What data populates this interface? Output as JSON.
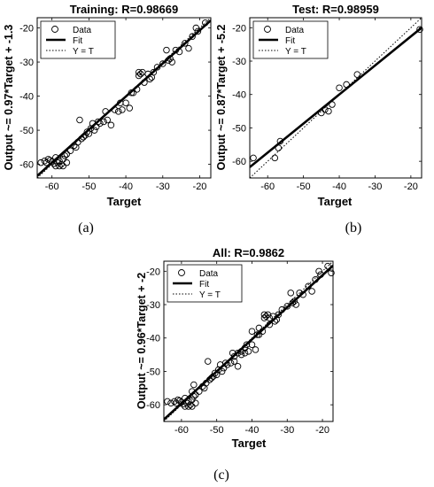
{
  "chart_data": [
    {
      "type": "scatter",
      "panel_label": "(a)",
      "title": "Training: R=0.98669",
      "xlabel": "Target",
      "ylabel": "Output ~= 0.97*Target + -1.3",
      "xlim": [
        -64,
        -17
      ],
      "ylim": [
        -64,
        -17
      ],
      "xticks": [
        -60,
        -50,
        -40,
        -30,
        -20
      ],
      "yticks": [
        -60,
        -50,
        -40,
        -30,
        -20
      ],
      "grid": false,
      "legend_position": "top-left",
      "legend": [
        "Data",
        "Fit",
        "Y = T"
      ],
      "fit": {
        "slope": 0.97,
        "intercept": -1.3
      },
      "series": [
        {
          "name": "Data",
          "points": [
            [
              -63,
              -59.5
            ],
            [
              -62,
              -59
            ],
            [
              -61.5,
              -59.5
            ],
            [
              -61,
              -58.5
            ],
            [
              -60.5,
              -58.8
            ],
            [
              -60,
              -59.2
            ],
            [
              -59.5,
              -59.8
            ],
            [
              -59,
              -58
            ],
            [
              -59,
              -60.5
            ],
            [
              -58.5,
              -59.5
            ],
            [
              -58,
              -60.5
            ],
            [
              -58,
              -59
            ],
            [
              -57.5,
              -60
            ],
            [
              -57,
              -60.5
            ],
            [
              -57,
              -58.5
            ],
            [
              -56.5,
              -57.5
            ],
            [
              -56,
              -59.5
            ],
            [
              -56,
              -57
            ],
            [
              -55,
              -56
            ],
            [
              -54,
              -54.5
            ],
            [
              -53.5,
              -55
            ],
            [
              -53,
              -53.5
            ],
            [
              -52.5,
              -47
            ],
            [
              -52,
              -52.5
            ],
            [
              -51.5,
              -52
            ],
            [
              -51,
              -51.5
            ],
            [
              -50.5,
              -50.5
            ],
            [
              -50,
              -51
            ],
            [
              -49.5,
              -49.5
            ],
            [
              -49,
              -48
            ],
            [
              -48.5,
              -50
            ],
            [
              -48,
              -49
            ],
            [
              -47.5,
              -47.5
            ],
            [
              -47,
              -48
            ],
            [
              -46,
              -47.5
            ],
            [
              -45.5,
              -44.5
            ],
            [
              -45,
              -47
            ],
            [
              -44,
              -48.5
            ],
            [
              -43,
              -44
            ],
            [
              -42,
              -44.5
            ],
            [
              -41.5,
              -42
            ],
            [
              -41,
              -44
            ],
            [
              -40,
              -42
            ],
            [
              -39,
              -43.5
            ],
            [
              -38.5,
              -39
            ],
            [
              -38,
              -39
            ],
            [
              -37,
              -38
            ],
            [
              -36.5,
              -33
            ],
            [
              -36.5,
              -34
            ],
            [
              -36,
              -33.5
            ],
            [
              -35.5,
              -33
            ],
            [
              -35,
              -36
            ],
            [
              -34,
              -33.5
            ],
            [
              -33.5,
              -35
            ],
            [
              -33,
              -34.5
            ],
            [
              -32.5,
              -33
            ],
            [
              -31.5,
              -31.5
            ],
            [
              -30,
              -30.5
            ],
            [
              -29,
              -26.5
            ],
            [
              -28.5,
              -29.5
            ],
            [
              -28,
              -29
            ],
            [
              -27.5,
              -30
            ],
            [
              -26.5,
              -26.5
            ],
            [
              -25.5,
              -27
            ],
            [
              -24,
              -24.5
            ],
            [
              -23,
              -26
            ],
            [
              -22,
              -22.5
            ],
            [
              -21,
              -20
            ],
            [
              -20.5,
              -21
            ],
            [
              -18.5,
              -18.5
            ]
          ]
        }
      ]
    },
    {
      "type": "scatter",
      "panel_label": "(b)",
      "title": "Test: R=0.98959",
      "xlabel": "Target",
      "ylabel": "Output ~= 0.87*Target + -5.2",
      "xlim": [
        -65,
        -17
      ],
      "ylim": [
        -65,
        -17
      ],
      "xticks": [
        -60,
        -50,
        -40,
        -30,
        -20
      ],
      "yticks": [
        -60,
        -50,
        -40,
        -30,
        -20
      ],
      "grid": false,
      "legend_position": "top-left",
      "legend": [
        "Data",
        "Fit",
        "Y = T"
      ],
      "fit": {
        "slope": 0.87,
        "intercept": -5.2
      },
      "series": [
        {
          "name": "Data",
          "points": [
            [
              -64,
              -59
            ],
            [
              -58,
              -59
            ],
            [
              -57,
              -56
            ],
            [
              -56.5,
              -54
            ],
            [
              -45,
              -45.5
            ],
            [
              -44,
              -44.5
            ],
            [
              -43,
              -45
            ],
            [
              -42,
              -43
            ],
            [
              -40,
              -38
            ],
            [
              -38,
              -37
            ],
            [
              -35,
              -34
            ],
            [
              -17.5,
              -20.5
            ]
          ]
        }
      ]
    },
    {
      "type": "scatter",
      "panel_label": "(c)",
      "title": "All: R=0.9862",
      "xlabel": "Target",
      "ylabel": "Output ~= 0.96*Target + -2",
      "xlim": [
        -65,
        -17
      ],
      "ylim": [
        -65,
        -17
      ],
      "xticks": [
        -60,
        -50,
        -40,
        -30,
        -20
      ],
      "yticks": [
        -60,
        -50,
        -40,
        -30,
        -20
      ],
      "grid": false,
      "legend_position": "top-left",
      "legend": [
        "Data",
        "Fit",
        "Y = T"
      ],
      "fit": {
        "slope": 0.96,
        "intercept": -2
      },
      "series": [
        {
          "name": "Data",
          "points": [
            [
              -64,
              -59
            ],
            [
              -63,
              -59.5
            ],
            [
              -62,
              -59
            ],
            [
              -61.5,
              -59.5
            ],
            [
              -61,
              -58.5
            ],
            [
              -60.5,
              -58.8
            ],
            [
              -60,
              -59.2
            ],
            [
              -59.5,
              -59.8
            ],
            [
              -59,
              -58
            ],
            [
              -59,
              -60.5
            ],
            [
              -58.5,
              -59.5
            ],
            [
              -58,
              -60.5
            ],
            [
              -58,
              -59
            ],
            [
              -57.5,
              -60
            ],
            [
              -57,
              -60.5
            ],
            [
              -57,
              -58.5
            ],
            [
              -57,
              -56
            ],
            [
              -56.5,
              -54
            ],
            [
              -56.5,
              -57.5
            ],
            [
              -56,
              -59.5
            ],
            [
              -56,
              -57
            ],
            [
              -55,
              -56
            ],
            [
              -54,
              -54.5
            ],
            [
              -53.5,
              -55
            ],
            [
              -53,
              -53.5
            ],
            [
              -52.5,
              -47
            ],
            [
              -52,
              -52.5
            ],
            [
              -51.5,
              -52
            ],
            [
              -51,
              -51.5
            ],
            [
              -50.5,
              -50.5
            ],
            [
              -50,
              -51
            ],
            [
              -49.5,
              -49.5
            ],
            [
              -49,
              -48
            ],
            [
              -48.5,
              -50
            ],
            [
              -48,
              -49
            ],
            [
              -47.5,
              -47.5
            ],
            [
              -47,
              -48
            ],
            [
              -46,
              -47.5
            ],
            [
              -45.5,
              -44.5
            ],
            [
              -45,
              -45.5
            ],
            [
              -45,
              -47
            ],
            [
              -44,
              -48.5
            ],
            [
              -44,
              -44.5
            ],
            [
              -43,
              -45
            ],
            [
              -43,
              -44
            ],
            [
              -42,
              -43
            ],
            [
              -42,
              -44.5
            ],
            [
              -41.5,
              -42
            ],
            [
              -41,
              -44
            ],
            [
              -40,
              -42
            ],
            [
              -40,
              -38
            ],
            [
              -39,
              -43.5
            ],
            [
              -38.5,
              -39
            ],
            [
              -38,
              -37
            ],
            [
              -38,
              -39
            ],
            [
              -37,
              -38
            ],
            [
              -36.5,
              -33
            ],
            [
              -36.5,
              -34
            ],
            [
              -36,
              -33.5
            ],
            [
              -35.5,
              -33
            ],
            [
              -35,
              -36
            ],
            [
              -35,
              -34
            ],
            [
              -34,
              -33.5
            ],
            [
              -33.5,
              -35
            ],
            [
              -33,
              -34.5
            ],
            [
              -32.5,
              -33
            ],
            [
              -31.5,
              -31.5
            ],
            [
              -30,
              -30.5
            ],
            [
              -29,
              -26.5
            ],
            [
              -28.5,
              -29.5
            ],
            [
              -28,
              -29
            ],
            [
              -27.5,
              -30
            ],
            [
              -26.5,
              -26.5
            ],
            [
              -25.5,
              -27
            ],
            [
              -24,
              -24.5
            ],
            [
              -23,
              -26
            ],
            [
              -22,
              -22.5
            ],
            [
              -21,
              -20
            ],
            [
              -20.5,
              -21
            ],
            [
              -18.5,
              -18.5
            ],
            [
              -17.5,
              -20.5
            ]
          ]
        }
      ]
    }
  ]
}
